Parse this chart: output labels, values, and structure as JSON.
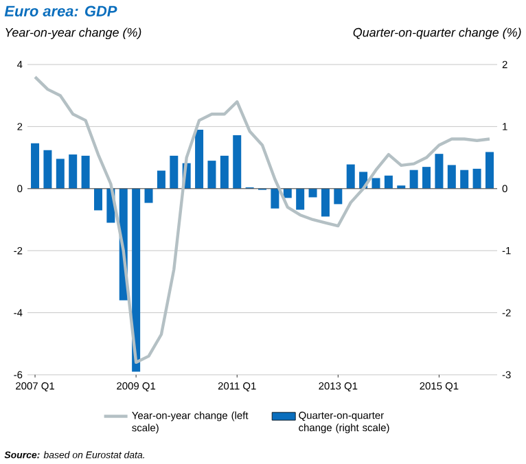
{
  "chart_data": {
    "type": "line",
    "title": "Euro area: GDP",
    "ylabel": "Year-on-year change (%)",
    "y2label": "Quarter-on-quarter change (%)",
    "categories": [
      "2007 Q1",
      null,
      null,
      null,
      null,
      null,
      null,
      null,
      "2009 Q1",
      null,
      null,
      null,
      null,
      null,
      null,
      null,
      "2011 Q1",
      null,
      null,
      null,
      null,
      null,
      null,
      null,
      "2013 Q1",
      null,
      null,
      null,
      null,
      null,
      null,
      null,
      "2015 Q1",
      null,
      null,
      null,
      null
    ],
    "series": [
      {
        "type": "bar",
        "axis": "y2",
        "name": "Quarter-on-quarter change (right scale)",
        "color": "#0a6ebd",
        "values": [
          0.73,
          0.62,
          0.48,
          0.55,
          0.53,
          -0.35,
          -0.55,
          -1.8,
          -2.95,
          -0.23,
          0.29,
          0.53,
          0.41,
          0.95,
          0.45,
          0.53,
          0.86,
          0.02,
          -0.02,
          -0.32,
          -0.15,
          -0.34,
          -0.14,
          -0.45,
          -0.25,
          0.39,
          0.27,
          0.17,
          0.21,
          0.05,
          0.3,
          0.35,
          0.56,
          0.38,
          0.3,
          0.32,
          0.59
        ]
      },
      {
        "name": "Year-on-year change (left scale)",
        "color": "#b4c0c4",
        "values": [
          3.6,
          3.2,
          3.0,
          2.4,
          2.2,
          1.1,
          0.15,
          -2.0,
          -5.6,
          -5.4,
          -4.7,
          -2.6,
          1.0,
          2.2,
          2.4,
          2.4,
          2.8,
          1.85,
          1.4,
          0.3,
          -0.6,
          -0.85,
          -1.0,
          -1.1,
          -1.2,
          -0.45,
          0.0,
          0.6,
          1.1,
          0.75,
          0.8,
          1.0,
          1.4,
          1.6,
          1.6,
          1.55,
          1.6
        ]
      }
    ],
    "ylim": [
      -6,
      4
    ],
    "yticks": [
      -6,
      -4,
      -2,
      0,
      2,
      4
    ],
    "y2lim": [
      -3,
      2
    ],
    "y2ticks": [
      -3,
      -2,
      -1,
      0,
      1,
      2
    ],
    "grid": "y",
    "legend": "bottom",
    "marker": "none",
    "line_style": "solid",
    "annotations": [
      "**Source:** based on Eurostat data."
    ]
  }
}
